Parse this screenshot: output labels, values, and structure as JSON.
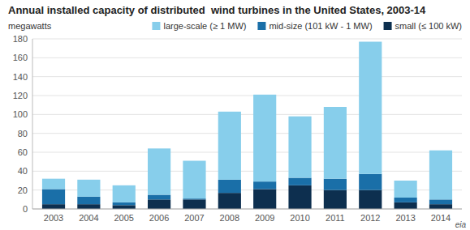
{
  "chart_data": {
    "type": "bar",
    "stacked": true,
    "title": "Annual installed capacity of distributed  wind turbines in the United States, 2003-14",
    "ylabel": "megawatts",
    "categories": [
      "2003",
      "2004",
      "2005",
      "2006",
      "2007",
      "2008",
      "2009",
      "2010",
      "2011",
      "2012",
      "2013",
      "2014"
    ],
    "series": [
      {
        "name": "small (≤ 100 kW)",
        "color": "#0d2f4f",
        "values": [
          5,
          5,
          4,
          10,
          10,
          17,
          21,
          25,
          20,
          20,
          7,
          5
        ]
      },
      {
        "name": "mid-size (101 kW - 1 MW)",
        "color": "#1a6fa8",
        "values": [
          16,
          8,
          3,
          5,
          1,
          14,
          8,
          8,
          12,
          17,
          5,
          5
        ]
      },
      {
        "name": "large-scale (≥ 1 MW)",
        "color": "#87ceeb",
        "values": [
          11,
          18,
          18,
          49,
          40,
          72,
          92,
          65,
          76,
          140,
          18,
          52
        ]
      }
    ],
    "ylim": [
      0,
      180
    ],
    "yticks": [
      0,
      20,
      40,
      60,
      80,
      100,
      120,
      140,
      160,
      180
    ],
    "grid": true,
    "legend": "upper right",
    "annotations": [
      "eia"
    ]
  }
}
